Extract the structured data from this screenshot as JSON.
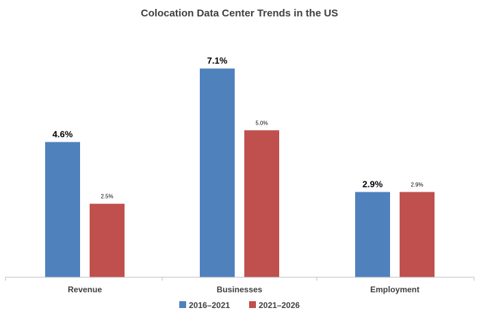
{
  "chart_data": {
    "type": "bar",
    "title": "Colocation Data Center Trends in the US",
    "xlabel": "",
    "ylabel": "",
    "ylim": [
      0,
      8.5
    ],
    "grid": false,
    "legend_position": "bottom",
    "categories": [
      "Revenue",
      "Businesses",
      "Employment"
    ],
    "series": [
      {
        "name": "2016–2021",
        "values": [
          4.6,
          7.1,
          2.9
        ],
        "labels": [
          "4.6%",
          "7.1%",
          "2.9%"
        ],
        "color": "#4F81BD"
      },
      {
        "name": "2021–2026",
        "values": [
          2.5,
          5.0,
          2.9
        ],
        "labels": [
          "2.5%",
          "5.0%",
          "2.9%"
        ],
        "color": "#C0504D"
      }
    ]
  }
}
